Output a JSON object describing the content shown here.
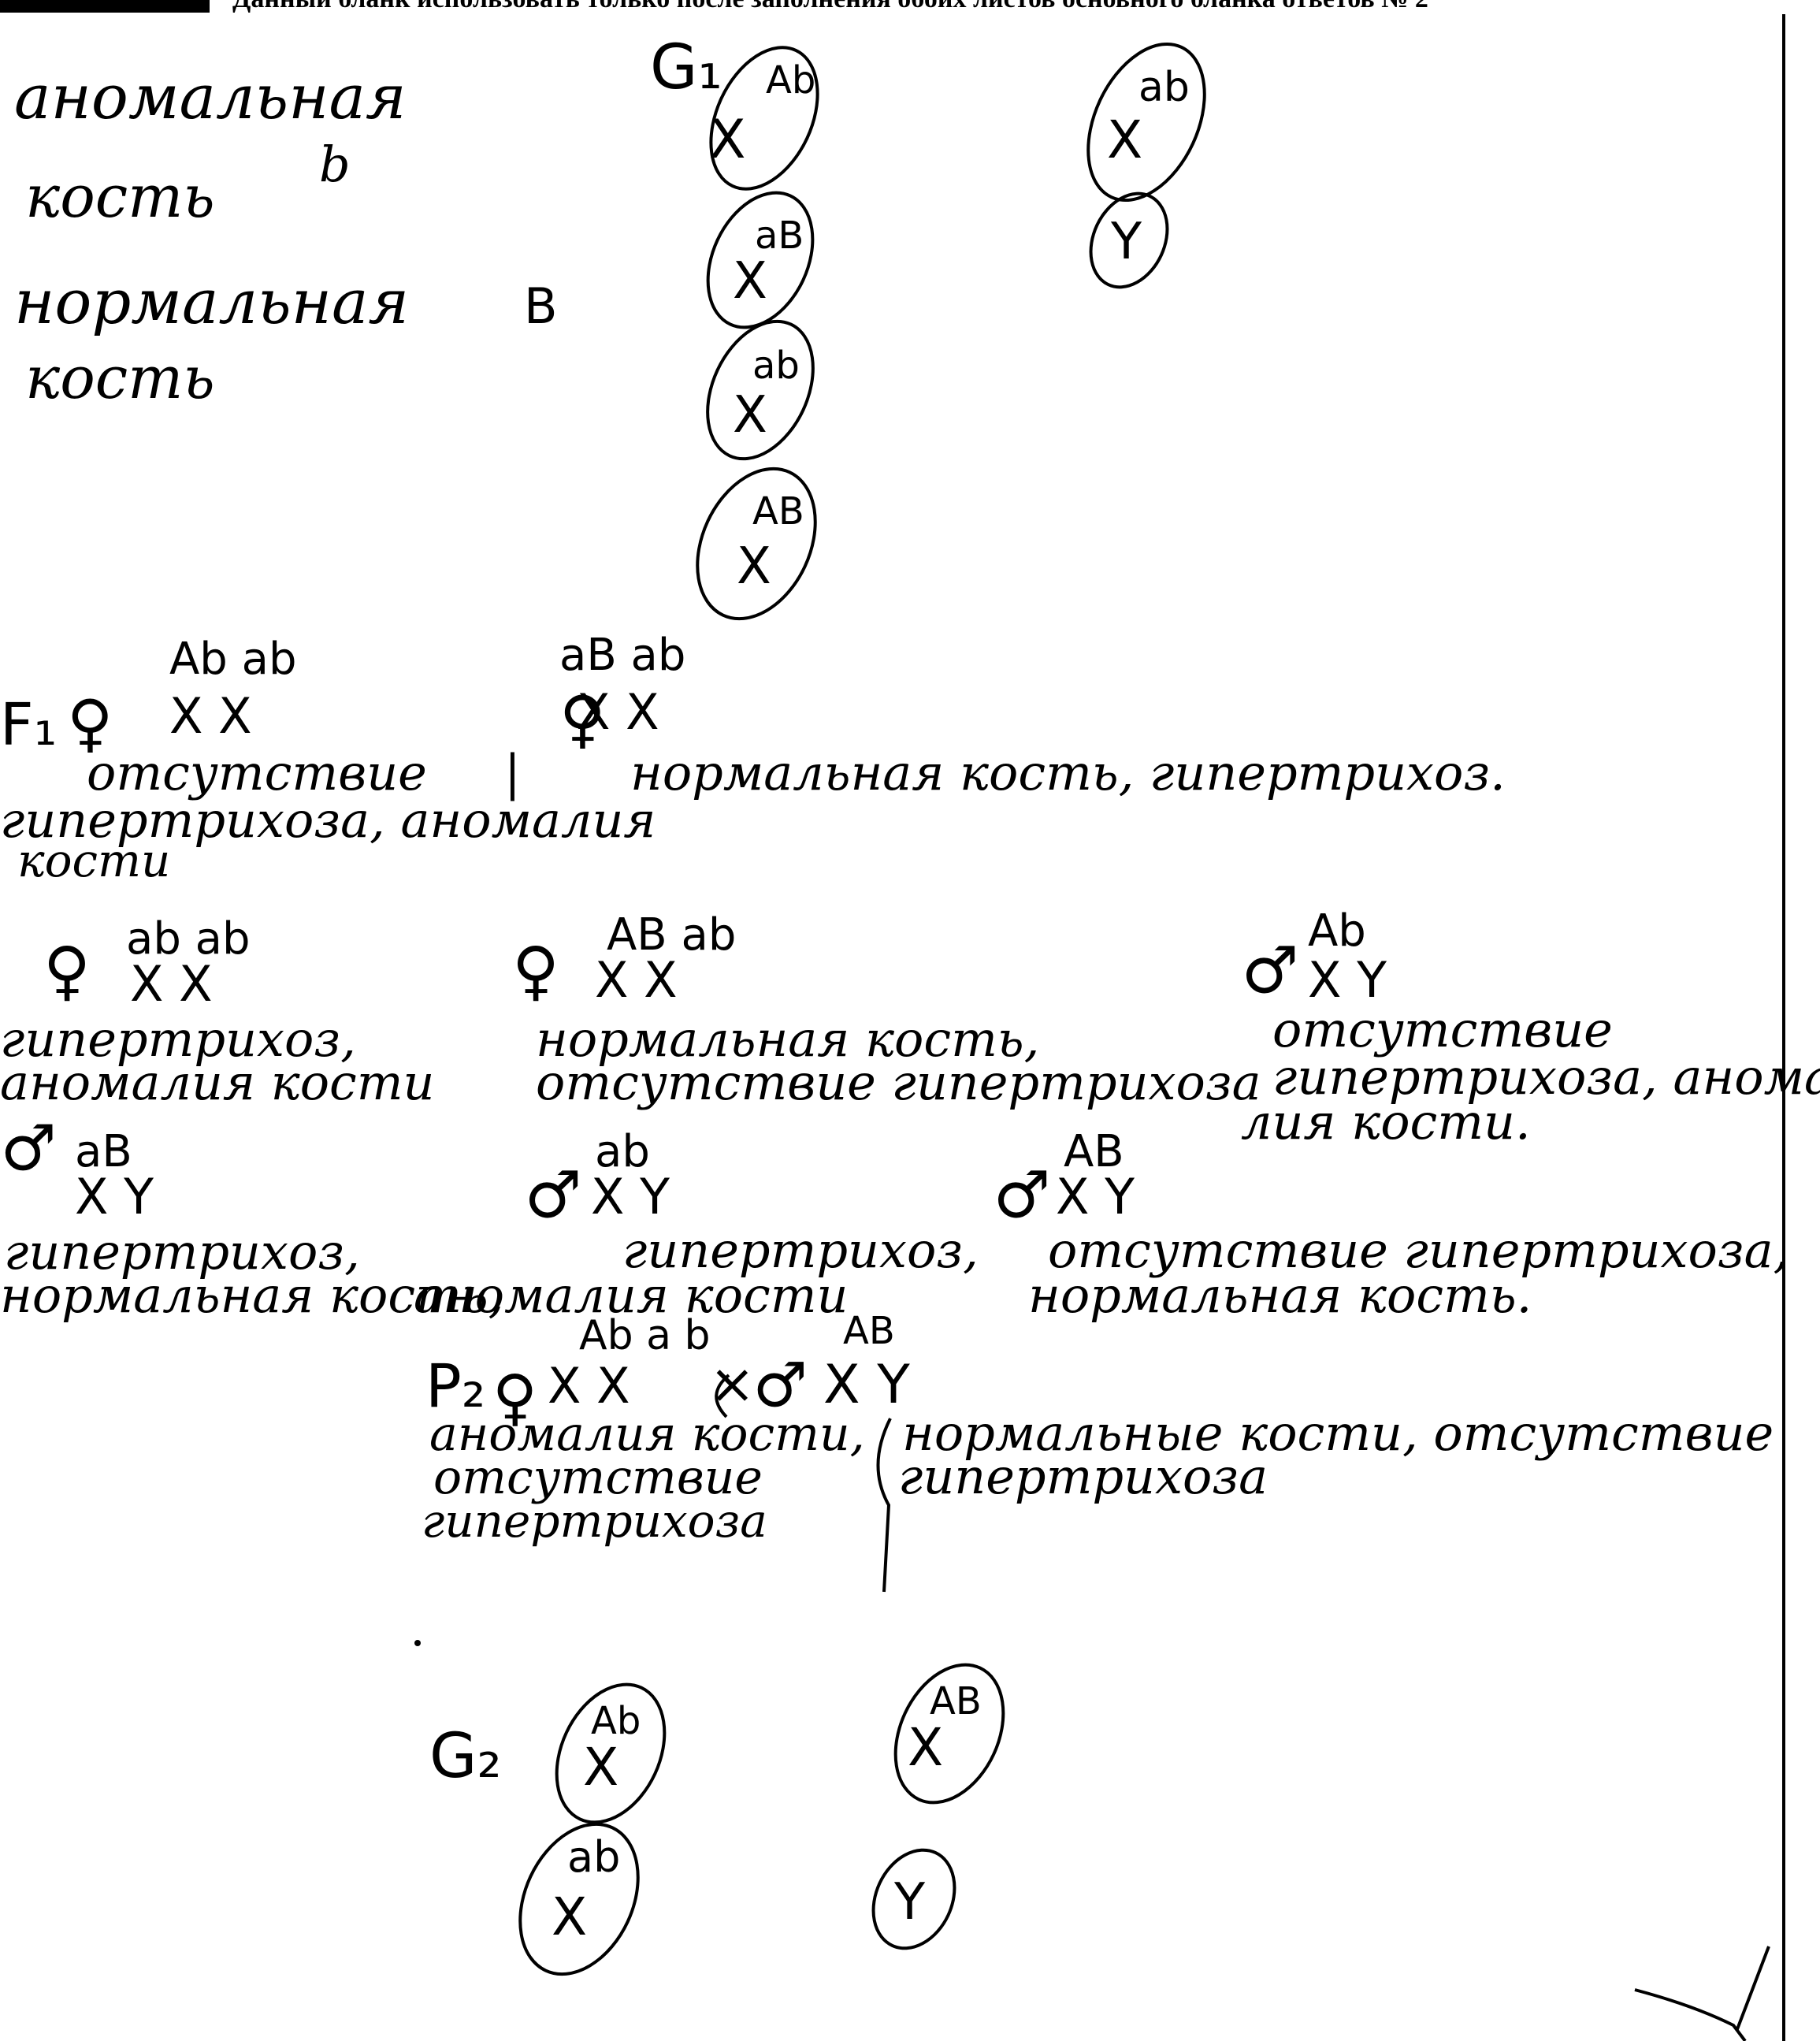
{
  "header": {
    "tag": "",
    "notice": "Данный бланк использовать только после заполнения обоих листов основного бланка ответов № 2"
  },
  "gametes_top": {
    "label": "G₁",
    "left": [
      {
        "top": "Ab",
        "bottom": "X"
      },
      {
        "top": "aB",
        "bottom": "X"
      },
      {
        "top": "ab",
        "bottom": "X"
      },
      {
        "top": "AB",
        "bottom": "X"
      }
    ],
    "right": [
      {
        "top": "ab",
        "bottom": "X"
      },
      {
        "top": "",
        "bottom": "Y"
      }
    ]
  },
  "top_left_notes": {
    "line1": "аномальная",
    "b_lower": "b",
    "line2": "кость",
    "line3": "нормальная",
    "b_upper": "B",
    "line4": "кость"
  },
  "f1_line": {
    "label": "F₁",
    "g1_top": "Ab ab",
    "g1_bottom": "X X",
    "g2_top": "aB ab",
    "g2_bottom": "X X",
    "desc1": "отсутствие",
    "separator": "|",
    "desc2": "нормальная кость, гипертрихоз.",
    "desc3": "гипертрихоза, аномалия",
    "desc4": "кости"
  },
  "offspring_row1": [
    {
      "sex": "♀",
      "top": "ab ab",
      "bottom": "X X",
      "desc1": "гипертрихоз,",
      "desc2": "аномалия кости"
    },
    {
      "sex": "♀",
      "top": "AB ab",
      "bottom": "X X",
      "desc1": "нормальная кость,",
      "desc2": "отсутствие гипертрихоза"
    },
    {
      "sex": "♂",
      "top": "Ab",
      "bottom": "X Y",
      "desc1": "отсутствие",
      "desc2": "гипертрихоза, анома-",
      "desc3": "лия кости."
    }
  ],
  "offspring_row2": [
    {
      "sex": "♂",
      "top": "aB",
      "bottom": "X Y",
      "desc1": "гипертрихоз,",
      "desc2": "нормальная кость,"
    },
    {
      "sex": "♂",
      "top": "ab",
      "bottom": "X Y",
      "desc1": "гипертрихоз,",
      "desc2": "аномалия кости"
    },
    {
      "sex": "♂",
      "top": "AB",
      "bottom": "X Y",
      "desc1": "отсутствие гипертрихоза,",
      "desc2": "нормальная кость."
    }
  ],
  "p2": {
    "label": "P₂",
    "female_sex": "♀",
    "female_top": "Ab a b",
    "female_bottom": "X X",
    "cross": "×",
    "male_sex": "♂",
    "male_top": "AB",
    "male_bottom": "X Y",
    "female_desc1": "аномалия кости,",
    "female_desc2": "отсутствие",
    "female_desc3": "гипертрихоза",
    "male_desc1": "нормальные кости, отсутствие",
    "male_desc2": "гипертрихоза"
  },
  "gametes_bottom": {
    "label": "G₂",
    "items": [
      {
        "top": "Ab",
        "bottom": "X"
      },
      {
        "top": "AB",
        "bottom": "X"
      },
      {
        "top": "ab",
        "bottom": "X"
      },
      {
        "top": "",
        "bottom": "Y"
      }
    ]
  }
}
